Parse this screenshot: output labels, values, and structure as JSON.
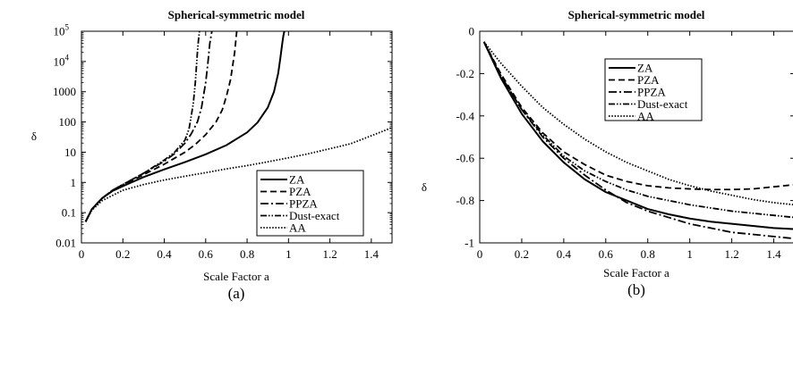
{
  "chart_data": [
    {
      "type": "line",
      "panel": "(a)",
      "title": "Spherical-symmetric model",
      "xlabel": "Scale Factor  a",
      "ylabel": "δ",
      "xlim": [
        0,
        1.5
      ],
      "ylim": [
        0.01,
        100000
      ],
      "yscale": "log",
      "xticks": [
        "0",
        "0.2",
        "0.4",
        "0.6",
        "0.8",
        "1",
        "1.2",
        "1.4"
      ],
      "yticks": [
        {
          "v": 0.01,
          "label": "0.01"
        },
        {
          "v": 0.1,
          "label": "0.1"
        },
        {
          "v": 1,
          "label": "1"
        },
        {
          "v": 10,
          "label": "10"
        },
        {
          "v": 100,
          "label": "100"
        },
        {
          "v": 1000,
          "label": "1000"
        },
        {
          "v": 10000,
          "base": "10",
          "exp": "4"
        },
        {
          "v": 100000,
          "base": "10",
          "exp": "5"
        }
      ],
      "legend_position": "bottom-right",
      "series": [
        {
          "name": "ZA",
          "style": "solid",
          "x": [
            0.02,
            0.05,
            0.1,
            0.15,
            0.2,
            0.3,
            0.4,
            0.5,
            0.6,
            0.7,
            0.8,
            0.85,
            0.9,
            0.93,
            0.95,
            0.96,
            0.97,
            0.975,
            0.98
          ],
          "y": [
            0.05,
            0.13,
            0.3,
            0.52,
            0.75,
            1.5,
            2.7,
            4.7,
            8.5,
            17,
            45,
            95,
            300,
            1000,
            4000,
            12000,
            40000,
            70000,
            100000
          ]
        },
        {
          "name": "PZA",
          "style": "dash",
          "x": [
            0.02,
            0.05,
            0.1,
            0.15,
            0.2,
            0.3,
            0.4,
            0.5,
            0.55,
            0.6,
            0.65,
            0.68,
            0.7,
            0.72,
            0.74,
            0.75
          ],
          "y": [
            0.05,
            0.13,
            0.3,
            0.55,
            0.8,
            1.8,
            4,
            10,
            18,
            38,
            100,
            250,
            700,
            2500,
            20000,
            100000
          ]
        },
        {
          "name": "PPZA",
          "style": "dashdot",
          "x": [
            0.02,
            0.05,
            0.1,
            0.15,
            0.2,
            0.3,
            0.4,
            0.45,
            0.5,
            0.53,
            0.56,
            0.58,
            0.6,
            0.61,
            0.62,
            0.63
          ],
          "y": [
            0.05,
            0.13,
            0.3,
            0.55,
            0.85,
            2,
            5,
            9,
            20,
            40,
            100,
            300,
            2000,
            8000,
            40000,
            100000
          ]
        },
        {
          "name": "Dust-exact",
          "style": "dashdotdot",
          "x": [
            0.02,
            0.05,
            0.1,
            0.15,
            0.2,
            0.3,
            0.4,
            0.45,
            0.5,
            0.52,
            0.54,
            0.55,
            0.56,
            0.565,
            0.57
          ],
          "y": [
            0.05,
            0.13,
            0.3,
            0.55,
            0.85,
            2,
            5.5,
            10,
            25,
            60,
            400,
            2000,
            20000,
            50000,
            100000
          ]
        },
        {
          "name": "AA",
          "style": "dot",
          "x": [
            0.02,
            0.05,
            0.1,
            0.2,
            0.3,
            0.4,
            0.5,
            0.6,
            0.7,
            0.8,
            0.9,
            1.0,
            1.1,
            1.2,
            1.3,
            1.4,
            1.5
          ],
          "y": [
            0.05,
            0.12,
            0.25,
            0.55,
            0.85,
            1.2,
            1.6,
            2.1,
            2.8,
            3.6,
            4.8,
            6.5,
            9,
            13,
            19,
            35,
            65
          ]
        }
      ]
    },
    {
      "type": "line",
      "panel": "(b)",
      "title": "Spherical-symmetric model",
      "xlabel": "Scale Factor  a",
      "ylabel": "δ",
      "xlim": [
        0,
        1.5
      ],
      "ylim": [
        -1,
        0
      ],
      "yscale": "linear",
      "xticks": [
        "0",
        "0.2",
        "0.4",
        "0.6",
        "0.8",
        "1",
        "1.2",
        "1.4"
      ],
      "yticks": [
        {
          "v": 0,
          "label": "0"
        },
        {
          "v": -0.2,
          "label": "-0.2"
        },
        {
          "v": -0.4,
          "label": "-0.4"
        },
        {
          "v": -0.6,
          "label": "-0.6"
        },
        {
          "v": -0.8,
          "label": "-0.8"
        },
        {
          "v": -1,
          "label": "-1"
        }
      ],
      "legend_position": "top-right",
      "series": [
        {
          "name": "ZA",
          "style": "solid",
          "x": [
            0.02,
            0.1,
            0.2,
            0.3,
            0.4,
            0.5,
            0.6,
            0.7,
            0.8,
            0.9,
            1.0,
            1.1,
            1.2,
            1.3,
            1.4,
            1.5
          ],
          "y": [
            -0.05,
            -0.22,
            -0.39,
            -0.52,
            -0.62,
            -0.7,
            -0.76,
            -0.8,
            -0.84,
            -0.865,
            -0.885,
            -0.9,
            -0.91,
            -0.92,
            -0.93,
            -0.935
          ]
        },
        {
          "name": "PZA",
          "style": "dash",
          "x": [
            0.02,
            0.1,
            0.2,
            0.3,
            0.4,
            0.5,
            0.6,
            0.7,
            0.8,
            0.9,
            1.0,
            1.1,
            1.2,
            1.3,
            1.4,
            1.5
          ],
          "y": [
            -0.05,
            -0.2,
            -0.36,
            -0.48,
            -0.57,
            -0.63,
            -0.68,
            -0.71,
            -0.73,
            -0.74,
            -0.745,
            -0.748,
            -0.748,
            -0.745,
            -0.735,
            -0.725
          ]
        },
        {
          "name": "PPZA",
          "style": "dashdot",
          "x": [
            0.02,
            0.1,
            0.2,
            0.3,
            0.4,
            0.5,
            0.6,
            0.7,
            0.8,
            0.9,
            1.0,
            1.1,
            1.2,
            1.3,
            1.4,
            1.5
          ],
          "y": [
            -0.05,
            -0.21,
            -0.37,
            -0.5,
            -0.6,
            -0.68,
            -0.75,
            -0.81,
            -0.85,
            -0.88,
            -0.91,
            -0.93,
            -0.95,
            -0.96,
            -0.97,
            -0.98
          ]
        },
        {
          "name": "Dust-exact",
          "style": "dashdotdot",
          "x": [
            0.02,
            0.1,
            0.2,
            0.3,
            0.4,
            0.5,
            0.6,
            0.7,
            0.8,
            0.9,
            1.0,
            1.1,
            1.2,
            1.3,
            1.4,
            1.5
          ],
          "y": [
            -0.05,
            -0.21,
            -0.37,
            -0.49,
            -0.59,
            -0.66,
            -0.71,
            -0.75,
            -0.78,
            -0.8,
            -0.82,
            -0.835,
            -0.85,
            -0.86,
            -0.87,
            -0.88
          ]
        },
        {
          "name": "AA",
          "style": "dot",
          "x": [
            0.02,
            0.1,
            0.2,
            0.3,
            0.4,
            0.5,
            0.6,
            0.7,
            0.8,
            0.9,
            1.0,
            1.1,
            1.2,
            1.3,
            1.4,
            1.5
          ],
          "y": [
            -0.05,
            -0.15,
            -0.26,
            -0.36,
            -0.44,
            -0.51,
            -0.57,
            -0.62,
            -0.66,
            -0.7,
            -0.73,
            -0.755,
            -0.775,
            -0.795,
            -0.81,
            -0.82
          ]
        }
      ]
    }
  ]
}
